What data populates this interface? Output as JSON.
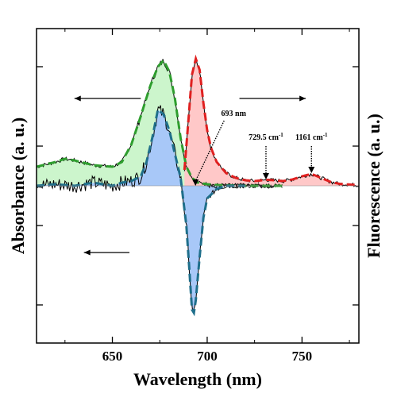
{
  "colors": {
    "green_fill": "#ccf5cc",
    "red_fill": "#ffc8c8",
    "blue_fill": "#a8c8f8",
    "green_dash": "#2e9e2e",
    "red_dash": "#e02020",
    "teal_dash": "#1f6f8b",
    "black": "#000000"
  },
  "chart_data": {
    "type": "line",
    "title": "",
    "xlabel": "Wavelength (nm)",
    "ylabel_left": "Absorbance (a. u.)",
    "ylabel_right": "Fluorescence (a. u.)",
    "xlim": [
      610,
      780
    ],
    "ylim": [
      -1.0,
      1.0
    ],
    "x_ticks": [
      650,
      700,
      750
    ],
    "x_tick_labels": [
      "650",
      "700",
      "750"
    ],
    "y_ticks_left": [
      -0.75,
      -0.25,
      0.25,
      0.75
    ],
    "y_ticks_right": [
      -0.75,
      -0.25,
      0.25,
      0.75
    ],
    "grid": false,
    "series": [
      {
        "style": "green-dashed-with-green-fill",
        "x": [
          610,
          620,
          625,
          630,
          640,
          650,
          655,
          660,
          665,
          670,
          674,
          677,
          680,
          683,
          686,
          689,
          692,
          695,
          700,
          705,
          720,
          740
        ],
        "y": [
          0.12,
          0.15,
          0.17,
          0.16,
          0.13,
          0.12,
          0.15,
          0.26,
          0.44,
          0.63,
          0.75,
          0.79,
          0.72,
          0.55,
          0.3,
          0.12,
          0.05,
          0.02,
          0.01,
          0.005,
          0.0,
          0.0
        ]
      },
      {
        "style": "red-dashed-with-red-fill",
        "x": [
          688,
          690,
          692,
          694,
          696,
          698,
          700,
          702,
          705,
          710,
          715,
          720,
          725,
          729,
          732,
          735,
          740,
          745,
          750,
          755,
          760,
          765,
          770,
          780
        ],
        "y": [
          0.1,
          0.4,
          0.7,
          0.8,
          0.73,
          0.52,
          0.35,
          0.24,
          0.15,
          0.08,
          0.05,
          0.035,
          0.03,
          0.035,
          0.038,
          0.035,
          0.03,
          0.04,
          0.06,
          0.075,
          0.05,
          0.025,
          0.012,
          0.004
        ]
      },
      {
        "style": "teal-dashed-with-blue-fill",
        "x": [
          610,
          620,
          630,
          640,
          645,
          650,
          655,
          660,
          665,
          668,
          671,
          674,
          677,
          680,
          683,
          686,
          689,
          691,
          692,
          693,
          694,
          696,
          698,
          700,
          705,
          710,
          720
        ],
        "y": [
          0.0,
          0.01,
          0.0,
          0.02,
          0.01,
          0.0,
          0.02,
          0.03,
          0.06,
          0.15,
          0.3,
          0.48,
          0.45,
          0.35,
          0.2,
          0.05,
          -0.25,
          -0.6,
          -0.78,
          -0.8,
          -0.72,
          -0.45,
          -0.2,
          -0.08,
          -0.02,
          0.0,
          0.0
        ]
      }
    ],
    "annotations": [
      {
        "text": "693 nm",
        "x": 693,
        "y": 0.0
      },
      {
        "text": "729.5 cm",
        "sup": "-1",
        "x": 731,
        "y": 0.04
      },
      {
        "text": "1161 cm",
        "sup": "-1",
        "x": 755,
        "y": 0.08
      }
    ],
    "arrows": [
      {
        "direction": "left",
        "from_x": 665,
        "to_x": 630,
        "y": 0.55
      },
      {
        "direction": "right",
        "from_x": 717,
        "to_x": 752,
        "y": 0.55
      },
      {
        "direction": "left",
        "from_x": 659,
        "to_x": 635,
        "y": -0.42
      }
    ]
  }
}
